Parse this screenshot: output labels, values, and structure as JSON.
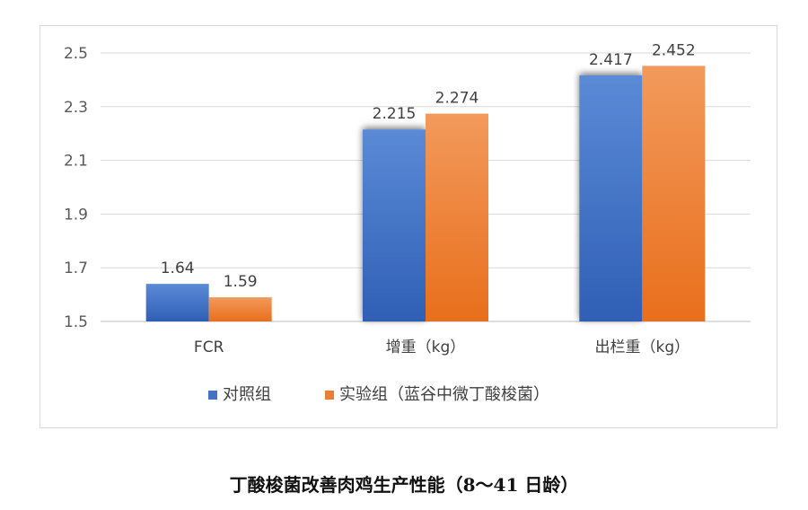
{
  "chart_data": {
    "type": "bar",
    "categories": [
      "FCR",
      "增重（kg）",
      "出栏重（kg）"
    ],
    "series": [
      {
        "name": "对照组",
        "values": [
          1.64,
          2.215,
          2.417
        ],
        "color": "#4472c4"
      },
      {
        "name": "实验组（蓝谷中微丁酸梭菌）",
        "values": [
          1.59,
          2.274,
          2.452
        ],
        "color": "#ed7d31"
      }
    ],
    "data_labels": [
      [
        "1.64",
        "2.215",
        "2.417"
      ],
      [
        "1.59",
        "2.274",
        "2.452"
      ]
    ],
    "yticks": [
      "1.5",
      "1.7",
      "1.9",
      "2.1",
      "2.3",
      "2.5"
    ],
    "ylim": [
      1.5,
      2.5
    ],
    "grid": true,
    "legend_position": "bottom",
    "title": "丁酸梭菌改善肉鸡生产性能（8～41 日龄）"
  }
}
